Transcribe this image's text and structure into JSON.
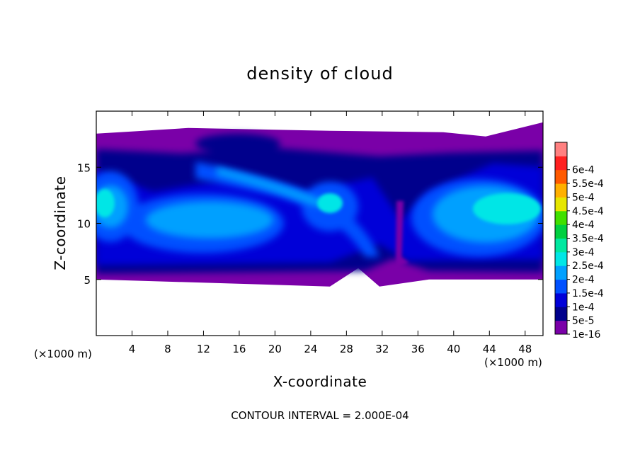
{
  "chart_data": {
    "type": "heatmap",
    "title": "density of cloud",
    "xlabel": "X-coordinate",
    "ylabel": "Z-coordinate",
    "x_unit": "(×1000 m)",
    "z_unit": "(×1000 m)",
    "xlim": [
      0,
      50
    ],
    "ylim": [
      0,
      20
    ],
    "x_ticks": [
      4,
      8,
      12,
      16,
      20,
      24,
      28,
      32,
      36,
      40,
      44,
      48
    ],
    "y_ticks": [
      5,
      10,
      15
    ],
    "contour_interval_text": "CONTOUR INTERVAL = 2.000E-04",
    "colorbar": {
      "labels": [
        "1e-16",
        "5e-5",
        "1e-4",
        "1.5e-4",
        "2e-4",
        "2.5e-4",
        "3e-4",
        "3.5e-4",
        "4e-4",
        "4.5e-4",
        "5e-4",
        "5.5e-4",
        "6e-4"
      ],
      "colors": [
        "#7a00a8",
        "#00008c",
        "#0000d8",
        "#0050ff",
        "#00a0ff",
        "#00e6e6",
        "#00e8a0",
        "#00d040",
        "#40e000",
        "#e6e600",
        "#ffb000",
        "#ff5a00",
        "#ff2020",
        "#ff8080"
      ]
    },
    "cloud_base_km": 5,
    "cloud_top_km": 18.5,
    "grid": false,
    "legend_placement": "right"
  }
}
